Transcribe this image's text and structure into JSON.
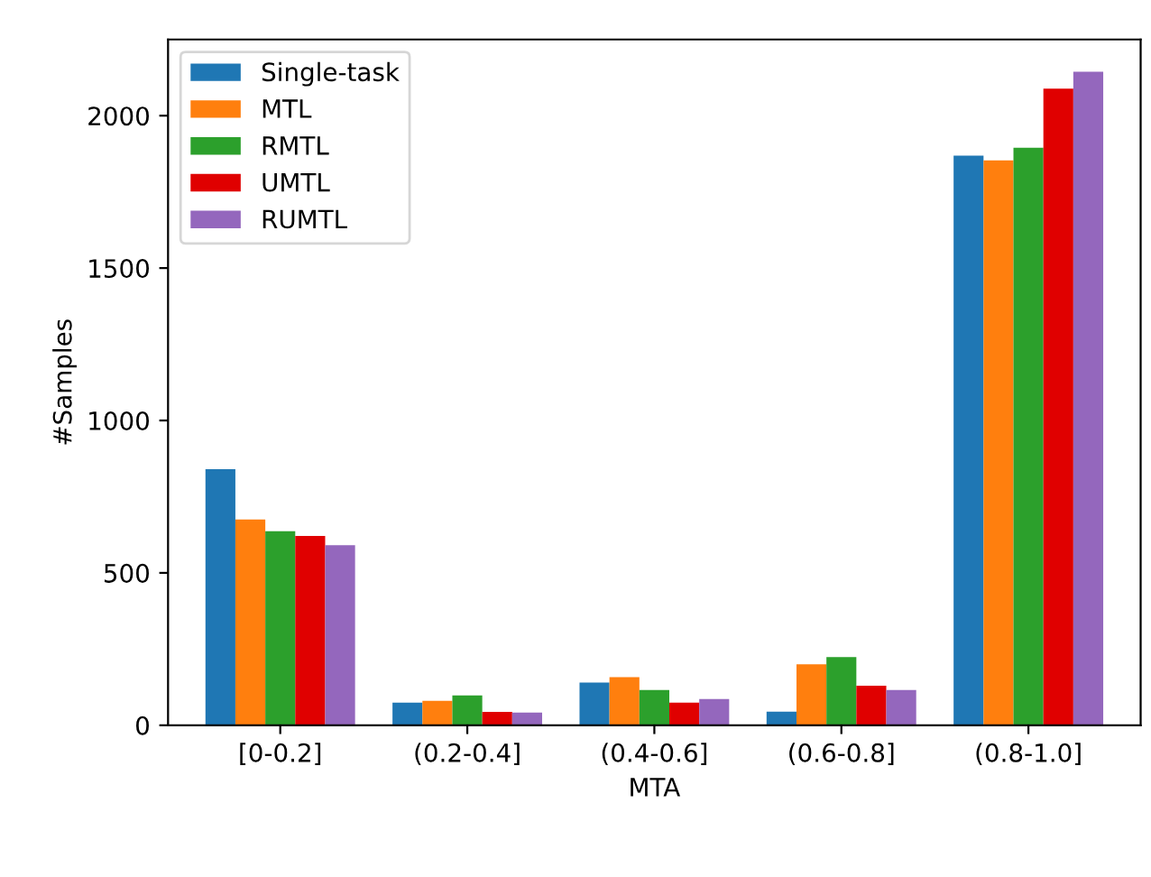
{
  "chart_data": {
    "type": "bar",
    "xlabel": "MTA",
    "ylabel": "#Samples",
    "categories": [
      "[0-0.2]",
      "(0.2-0.4]",
      "(0.4-0.6]",
      "(0.6-0.8]",
      "(0.8-1.0]"
    ],
    "series": [
      {
        "name": "Single-task",
        "color": "#1f77b4",
        "values": [
          840,
          74,
          140,
          45,
          1869
        ]
      },
      {
        "name": "MTL",
        "color": "#ff7f0e",
        "values": [
          675,
          80,
          158,
          200,
          1853
        ]
      },
      {
        "name": "RMTL",
        "color": "#2ca02c",
        "values": [
          637,
          98,
          116,
          224,
          1895
        ]
      },
      {
        "name": "UMTL",
        "color": "#e00000",
        "values": [
          621,
          44,
          74,
          130,
          2089
        ]
      },
      {
        "name": "RUMTL",
        "color": "#9467bd",
        "values": [
          591,
          42,
          86,
          116,
          2144
        ]
      }
    ],
    "ylim": [
      0,
      2250
    ],
    "yticks": [
      0,
      500,
      1000,
      1500,
      2000
    ],
    "legend": "top left",
    "grid": false
  }
}
